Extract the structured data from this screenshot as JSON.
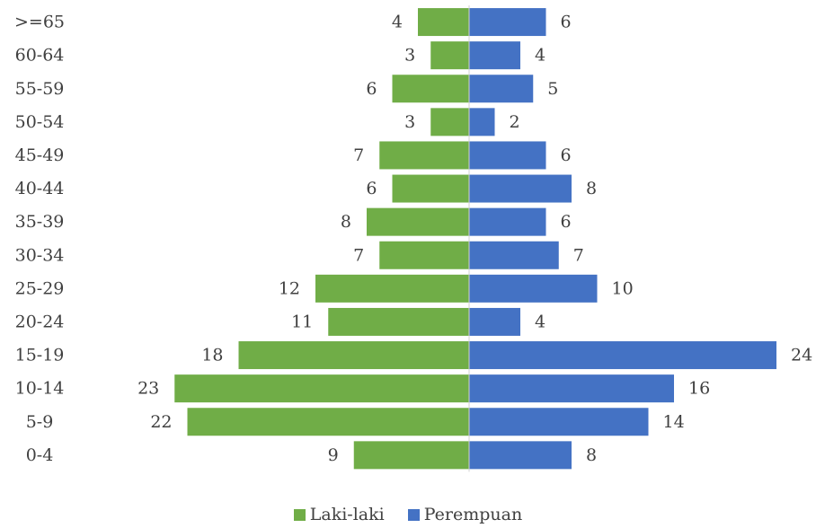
{
  "chart_data": {
    "type": "bar",
    "orientation": "horizontal",
    "stacking": "diverging",
    "categories": [
      "0-4",
      "5-9",
      "10-14",
      "15-19",
      "20-24",
      "25-29",
      "30-34",
      "35-39",
      "40-44",
      "45-49",
      "50-54",
      "55-59",
      "60-64",
      ">=65"
    ],
    "series": [
      {
        "name": "Laki-laki",
        "values": [
          9,
          22,
          23,
          18,
          11,
          12,
          7,
          8,
          6,
          7,
          3,
          6,
          3,
          4
        ],
        "color": "#70AD47",
        "side": "left"
      },
      {
        "name": "Perempuan",
        "values": [
          8,
          14,
          16,
          24,
          4,
          10,
          7,
          6,
          8,
          6,
          2,
          5,
          4,
          6
        ],
        "color": "#4472C4",
        "side": "right"
      }
    ],
    "title": "",
    "xlabel": "",
    "ylabel": "",
    "data_labels": true,
    "grid": false,
    "legend": "bottom-center"
  }
}
